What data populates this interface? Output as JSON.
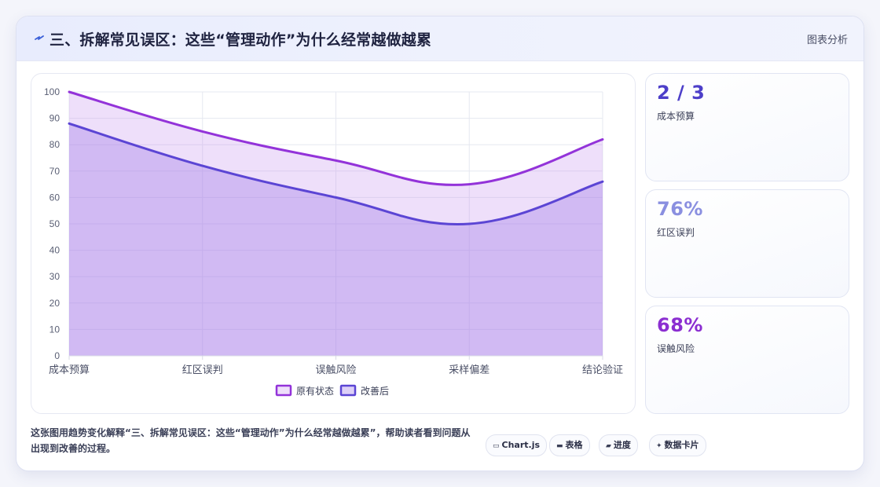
{
  "header": {
    "icon": "lightning-bolt-icon",
    "title": "三、拆解常见误区：这些“管理动作”为什么经常越做越累",
    "tag": "图表分析"
  },
  "chart_data": {
    "type": "area",
    "categories": [
      "成本预算",
      "红区误判",
      "误触风险",
      "采样偏差",
      "结论验证"
    ],
    "series": [
      {
        "name": "原有状态",
        "values": [
          100,
          85,
          74,
          65,
          82
        ],
        "color": "#9333d9"
      },
      {
        "name": "改善后",
        "values": [
          88,
          72,
          60,
          50,
          66
        ],
        "color": "#5b45d4"
      }
    ],
    "ylim": [
      0,
      100
    ],
    "yticks": [
      0,
      10,
      20,
      30,
      40,
      50,
      60,
      70,
      80,
      90,
      100
    ],
    "grid": true,
    "legend": "bottom",
    "smooth": true
  },
  "kpis": [
    {
      "value": "2 / 3",
      "label": "成本预算",
      "color": "#4d3fc9"
    },
    {
      "value": "76%",
      "label": "红区误判",
      "color": "#8a8fe0"
    },
    {
      "value": "68%",
      "label": "误触风险",
      "color": "#8b2ed1"
    }
  ],
  "description": "这张图用趋势变化解释“三、拆解常见误区：这些“管理动作”为什么经常越做越累”，帮助读者看到问题从出现到改善的过程。",
  "chips": [
    {
      "icon": "monitor-icon",
      "glyph": "▭",
      "label": "Chart.js"
    },
    {
      "icon": "table-icon",
      "glyph": "▬",
      "label": "表格"
    },
    {
      "icon": "progress-icon",
      "glyph": "▰",
      "label": "进度"
    },
    {
      "icon": "sparkle-icon",
      "glyph": "✦",
      "label": "数据卡片"
    }
  ]
}
